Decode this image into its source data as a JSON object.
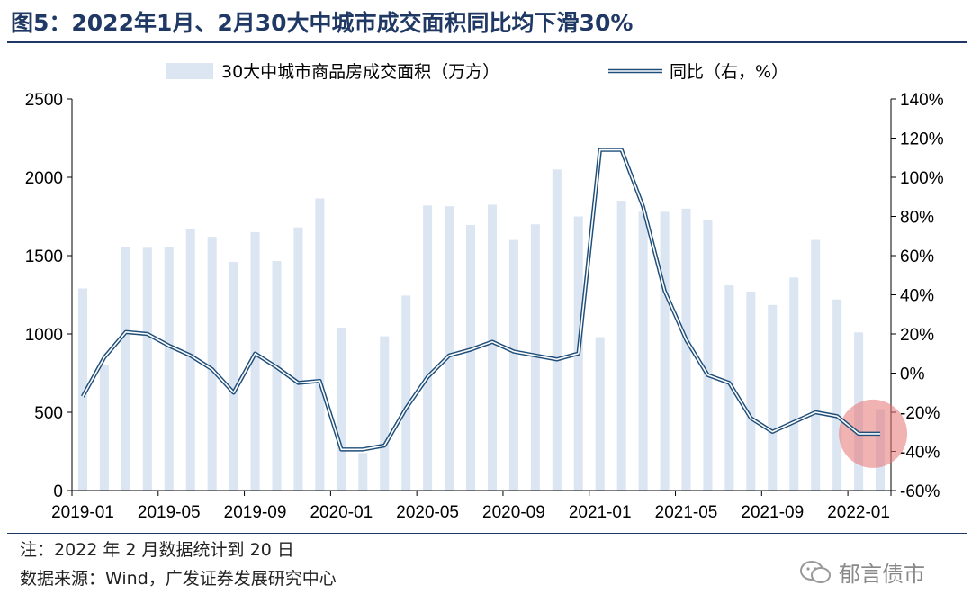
{
  "title": "图5：2022年1月、2月30大中城市成交面积同比均下滑30%",
  "note": "注：2022 年 2 月数据统计到 20 日",
  "source": "数据来源：Wind，广发证券发展研究中心",
  "watermark": "郁言债市",
  "chart_data": {
    "type": "bar+line",
    "x": [
      "2019-01",
      "2019-02",
      "2019-03",
      "2019-04",
      "2019-05",
      "2019-06",
      "2019-07",
      "2019-08",
      "2019-09",
      "2019-10",
      "2019-11",
      "2019-12",
      "2020-01",
      "2020-02",
      "2020-03",
      "2020-04",
      "2020-05",
      "2020-06",
      "2020-07",
      "2020-08",
      "2020-09",
      "2020-10",
      "2020-11",
      "2020-12",
      "2021-01",
      "2021-02",
      "2021-03",
      "2021-04",
      "2021-05",
      "2021-06",
      "2021-07",
      "2021-08",
      "2021-09",
      "2021-10",
      "2021-11",
      "2021-12",
      "2022-01",
      "2022-02"
    ],
    "x_tick_labels": [
      "2019-01",
      "2019-05",
      "2019-09",
      "2020-01",
      "2020-05",
      "2020-09",
      "2021-01",
      "2021-05",
      "2021-09",
      "2022-01"
    ],
    "series": [
      {
        "name": "30大中城市商品房成交面积（万方）",
        "type": "bar",
        "axis": "left",
        "color": "#dce6f2",
        "values": [
          1290,
          800,
          1555,
          1550,
          1555,
          1670,
          1620,
          1460,
          1650,
          1465,
          1680,
          1865,
          1040,
          240,
          985,
          1245,
          1820,
          1815,
          1695,
          1825,
          1600,
          1700,
          2050,
          1750,
          980,
          1850,
          1780,
          1780,
          1800,
          1730,
          1310,
          1270,
          1185,
          1360,
          1600,
          1220,
          1010,
          520
        ]
      },
      {
        "name": "同比（右，%）",
        "type": "line",
        "axis": "right",
        "color": "#1f4e79",
        "values": [
          -12,
          8,
          21,
          20,
          14,
          9,
          2,
          -10,
          10,
          3,
          -5,
          -4,
          -39,
          -39,
          -37,
          -18,
          -2,
          9,
          12,
          16,
          11,
          9,
          7,
          10,
          114,
          114,
          85,
          42,
          17,
          -1,
          -5,
          -23,
          -30,
          -25,
          -20,
          -22,
          -31,
          -31
        ]
      }
    ],
    "y_left": {
      "min": 0,
      "max": 2500,
      "ticks": [
        0,
        500,
        1000,
        1500,
        2000,
        2500
      ]
    },
    "y_right": {
      "min": -60,
      "max": 140,
      "ticks": [
        "-60%",
        "-40%",
        "-20%",
        "0%",
        "20%",
        "40%",
        "60%",
        "80%",
        "100%",
        "120%",
        "140%"
      ]
    },
    "legend_position": "top-center",
    "highlight": {
      "type": "circle",
      "color": "#e57373",
      "near": "2022-01..2022-02"
    }
  }
}
